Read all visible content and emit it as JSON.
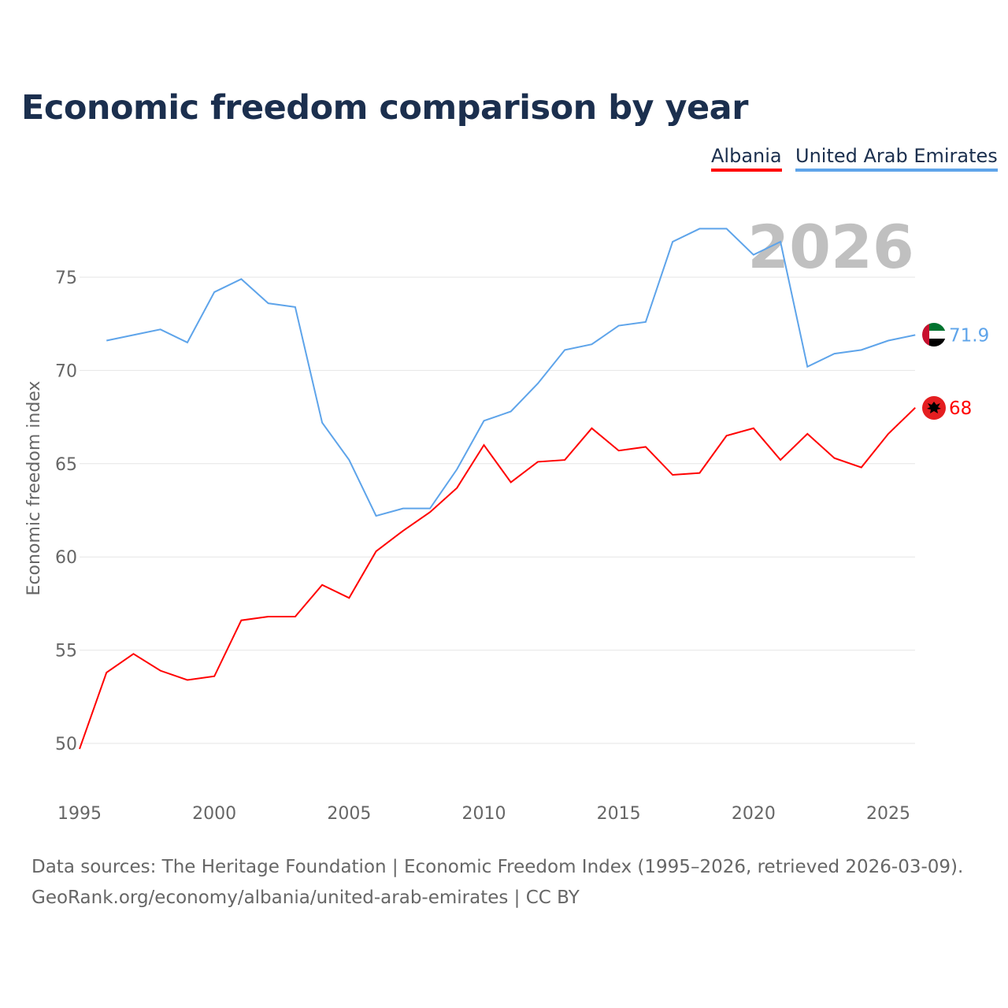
{
  "title": "Economic freedom comparison by year",
  "footer": {
    "line1": "Data sources: The Heritage Foundation | Economic Freedom Index (1995–2026, retrieved 2026-03-09).",
    "line2": "GeoRank.org/economy/albania/united-arab-emirates | CC BY"
  },
  "chart_data": {
    "type": "line",
    "title": "Economic freedom comparison by year",
    "xlabel": "",
    "ylabel": "Economic freedom index",
    "year_watermark": "2026",
    "xlim": [
      1995,
      2026
    ],
    "ylim": [
      48,
      78
    ],
    "x_ticks": [
      "1995",
      "2000",
      "2005",
      "2010",
      "2015",
      "2020",
      "2025"
    ],
    "y_ticks": [
      "50",
      "55",
      "60",
      "65",
      "70",
      "75"
    ],
    "grid": true,
    "legend_position": "top-right",
    "series": [
      {
        "name": "Albania",
        "color": "#ff0000",
        "end_label": "68",
        "x": [
          1995,
          1996,
          1997,
          1998,
          1999,
          2000,
          2001,
          2002,
          2003,
          2004,
          2005,
          2006,
          2007,
          2008,
          2009,
          2010,
          2011,
          2012,
          2013,
          2014,
          2015,
          2016,
          2017,
          2018,
          2019,
          2020,
          2021,
          2022,
          2023,
          2024,
          2025,
          2026
        ],
        "values": [
          49.7,
          53.8,
          54.8,
          53.9,
          53.4,
          53.6,
          56.6,
          56.8,
          56.8,
          58.5,
          57.8,
          60.3,
          61.4,
          62.4,
          63.7,
          66.0,
          64.0,
          65.1,
          65.2,
          66.9,
          65.7,
          65.9,
          64.4,
          64.5,
          66.5,
          66.9,
          65.2,
          66.6,
          65.3,
          64.8,
          66.6,
          68.0
        ]
      },
      {
        "name": "United Arab Emirates",
        "color": "#5ea4ea",
        "end_label": "71.9",
        "x": [
          1996,
          1997,
          1998,
          1999,
          2000,
          2001,
          2002,
          2003,
          2004,
          2005,
          2006,
          2007,
          2008,
          2009,
          2010,
          2011,
          2012,
          2013,
          2014,
          2015,
          2016,
          2017,
          2018,
          2019,
          2020,
          2021,
          2022,
          2023,
          2024,
          2025,
          2026
        ],
        "values": [
          71.6,
          71.9,
          72.2,
          71.5,
          74.2,
          74.9,
          73.6,
          73.4,
          67.2,
          65.2,
          62.2,
          62.6,
          62.6,
          64.7,
          67.3,
          67.8,
          69.3,
          71.1,
          71.4,
          72.4,
          72.6,
          76.9,
          77.6,
          77.6,
          76.2,
          76.9,
          70.2,
          70.9,
          71.1,
          71.6,
          71.9
        ]
      }
    ]
  }
}
